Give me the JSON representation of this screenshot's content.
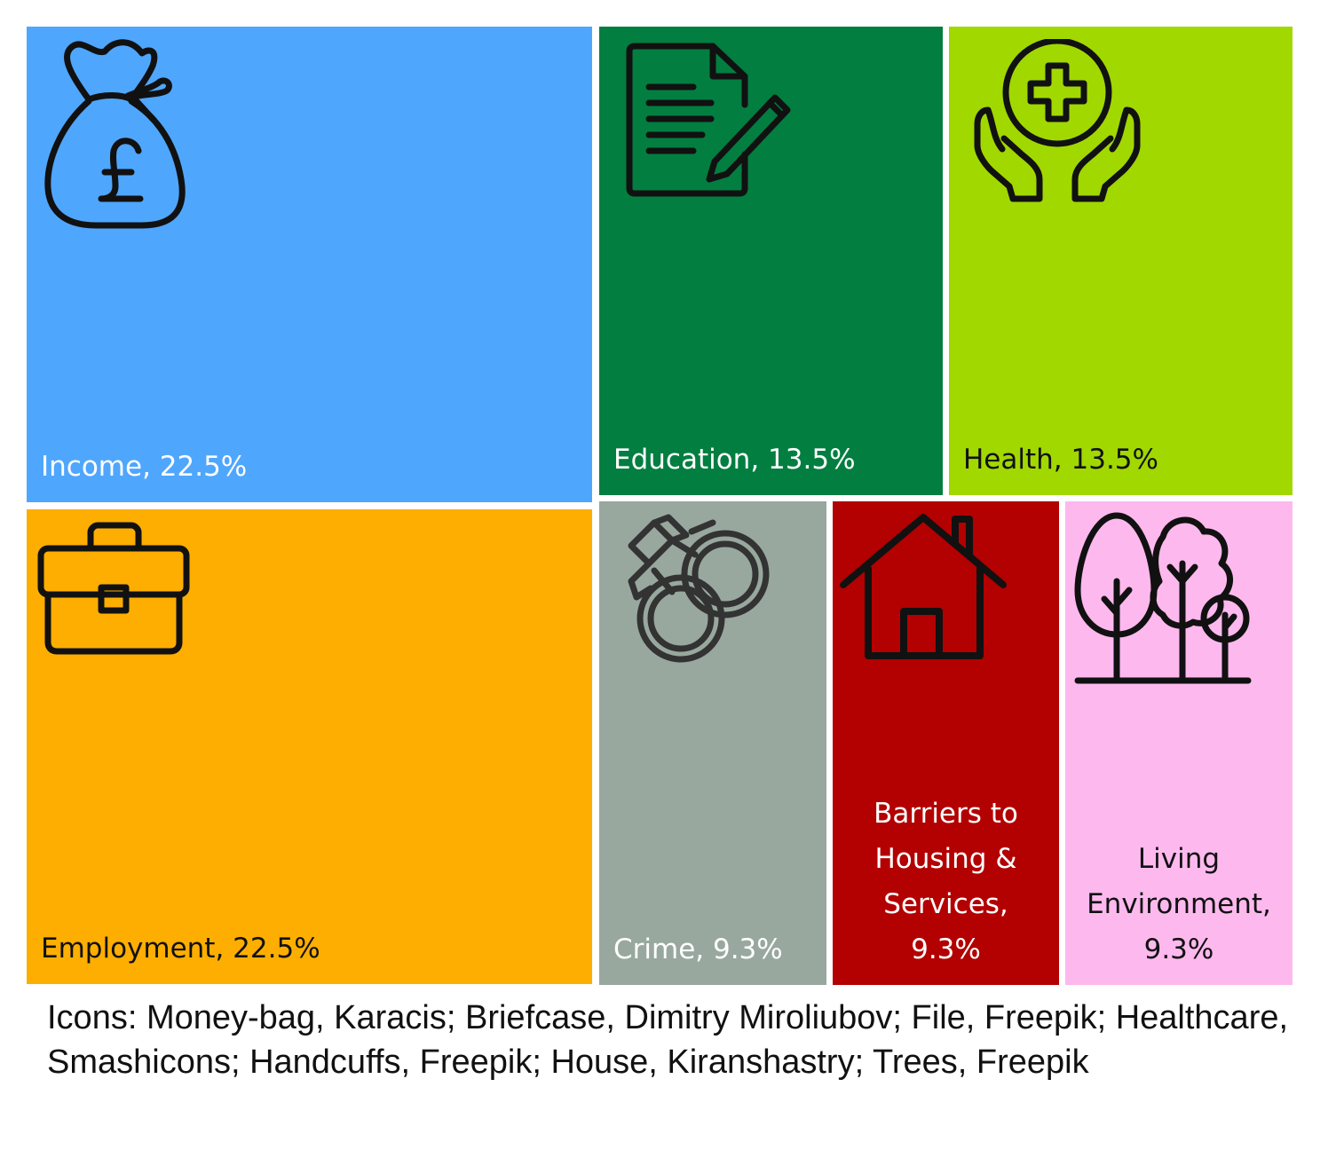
{
  "chart_data": {
    "type": "treemap",
    "items": [
      {
        "key": "income",
        "name": "Income",
        "value": 22.5,
        "label": "Income, 22.5%",
        "color": "#4FA6FD",
        "text_color": "#ffffff",
        "icon": "money-bag-icon"
      },
      {
        "key": "employment",
        "name": "Employment",
        "value": 22.5,
        "label": "Employment, 22.5%",
        "color": "#FDAE00",
        "text_color": "#111111",
        "icon": "briefcase-icon"
      },
      {
        "key": "education",
        "name": "Education",
        "value": 13.5,
        "label": "Education, 13.5%",
        "color": "#027E40",
        "text_color": "#ffffff",
        "icon": "file-icon"
      },
      {
        "key": "health",
        "name": "Health",
        "value": 13.5,
        "label": "Health, 13.5%",
        "color": "#A1D800",
        "text_color": "#111111",
        "icon": "healthcare-icon"
      },
      {
        "key": "crime",
        "name": "Crime",
        "value": 9.3,
        "label": "Crime, 9.3%",
        "color": "#98A89F",
        "text_color": "#ffffff",
        "icon": "handcuffs-icon"
      },
      {
        "key": "barriers",
        "name": "Barriers to Housing & Services",
        "value": 9.3,
        "label_lines": [
          "Barriers to",
          "Housing &",
          "Services,",
          "9.3%"
        ],
        "color": "#B30000",
        "text_color": "#ffffff",
        "icon": "house-icon"
      },
      {
        "key": "living",
        "name": "Living Environment",
        "value": 9.3,
        "label_lines": [
          "Living",
          "Environment,",
          "9.3%"
        ],
        "color": "#FDB9EE",
        "text_color": "#111111",
        "icon": "trees-icon"
      }
    ]
  },
  "caption": "Icons: Money-bag, Karacis; Briefcase, Dimitry Miroliubov; File, Freepik; Healthcare, Smashicons; Handcuffs, Freepik;  House, Kiranshastry; Trees, Freepik"
}
